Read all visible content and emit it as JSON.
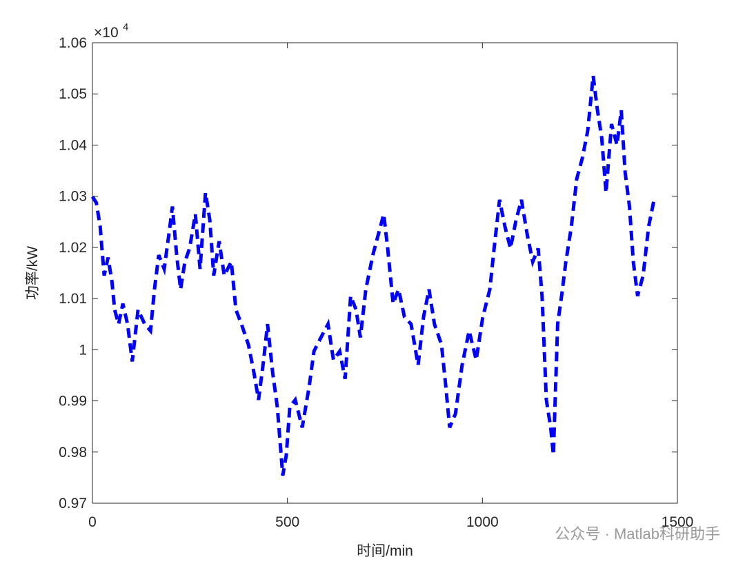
{
  "chart_data": {
    "type": "line",
    "xlabel": "时间/min",
    "ylabel": "功率/kW",
    "y_multiplier_base": "×10",
    "y_multiplier_power": "4",
    "watermark": "公众号 · Matlab科研助手",
    "xlim": [
      0,
      1500
    ],
    "xticks": [
      0,
      500,
      1000,
      1500
    ],
    "ylim": [
      0.97,
      1.06
    ],
    "yticks": [
      0.97,
      0.98,
      0.99,
      1,
      1.01,
      1.02,
      1.03,
      1.04,
      1.05,
      1.06
    ],
    "line_style": "dashed",
    "x": [
      0,
      10,
      20,
      25,
      30,
      40,
      50,
      57,
      67,
      78,
      90,
      102,
      117,
      134,
      149,
      159,
      170,
      184,
      196,
      205,
      216,
      226,
      237,
      249,
      264,
      276,
      290,
      301,
      311,
      325,
      338,
      356,
      368,
      382,
      400,
      414,
      426,
      439,
      449,
      462,
      474,
      488,
      497,
      506,
      520,
      538,
      556,
      568,
      586,
      604,
      618,
      634,
      648,
      662,
      676,
      687,
      701,
      719,
      733,
      747,
      757,
      771,
      785,
      800,
      817,
      835,
      849,
      863,
      877,
      895,
      906,
      916,
      931,
      948,
      966,
      984,
      1001,
      1019,
      1030,
      1044,
      1058,
      1072,
      1086,
      1100,
      1115,
      1129,
      1143,
      1153,
      1164,
      1175,
      1182,
      1193,
      1203,
      1214,
      1228,
      1242,
      1256,
      1270,
      1284,
      1295,
      1306,
      1317,
      1331,
      1345,
      1356,
      1366,
      1377,
      1387,
      1398,
      1412,
      1426,
      1440
    ],
    "series": [
      {
        "color": "#0000ff",
        "values": [
          1.0299,
          1.0287,
          1.024,
          1.0192,
          1.0145,
          1.018,
          1.0133,
          1.0078,
          1.005,
          1.009,
          1.005,
          0.9977,
          1.0078,
          1.005,
          1.0037,
          1.0118,
          1.0185,
          1.0158,
          1.0225,
          1.028,
          1.0185,
          1.0118,
          1.0172,
          1.0198,
          1.0265,
          1.0158,
          1.0307,
          1.0253,
          1.0145,
          1.0212,
          1.0145,
          1.0172,
          1.0078,
          1.005,
          1.001,
          0.9956,
          0.9902,
          0.998,
          1.005,
          0.9956,
          0.9888,
          0.9754,
          0.9794,
          0.9888,
          0.9902,
          0.9848,
          0.9929,
          0.9997,
          1.0024,
          1.005,
          0.998,
          0.9997,
          0.9943,
          1.0105,
          1.0078,
          1.0024,
          1.0118,
          1.0185,
          1.0225,
          1.0265,
          1.0198,
          1.009,
          1.0118,
          1.0064,
          1.005,
          0.997,
          1.0064,
          1.0118,
          1.005,
          1.001,
          0.9929,
          0.9848,
          0.9875,
          0.997,
          1.0037,
          0.998,
          1.0064,
          1.0118,
          1.0198,
          1.0293,
          1.024,
          1.0198,
          1.0253,
          1.0293,
          1.0225,
          1.0172,
          1.0198,
          1.0105,
          0.9902,
          0.9848,
          0.9794,
          1.005,
          1.0105,
          1.0172,
          1.024,
          1.0334,
          1.0374,
          1.0428,
          1.0535,
          1.0468,
          1.0414,
          1.0307,
          1.0441,
          1.04,
          1.0468,
          1.0347,
          1.028,
          1.0172,
          1.0105,
          1.0145,
          1.024,
          1.0293
        ]
      }
    ]
  }
}
